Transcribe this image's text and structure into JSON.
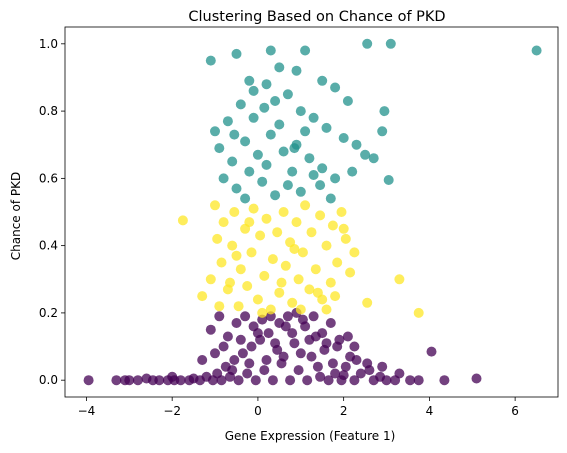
{
  "chart_data": {
    "type": "scatter",
    "title": "Clustering Based on Chance of PKD",
    "xlabel": "Gene Expression (Feature 1)",
    "ylabel": "Chance of PKD",
    "xlim": [
      -4.5,
      7.0
    ],
    "ylim": [
      -0.05,
      1.05
    ],
    "x_ticks": [
      "−4",
      "−2",
      "0",
      "2",
      "4",
      "6"
    ],
    "x_tick_values": [
      -4,
      -2,
      0,
      2,
      4,
      6
    ],
    "y_ticks": [
      "0.0",
      "0.2",
      "0.4",
      "0.6",
      "0.8",
      "1.0"
    ],
    "y_tick_values": [
      0.0,
      0.2,
      0.4,
      0.6,
      0.8,
      1.0
    ],
    "grid": false,
    "legend": "none",
    "series": [
      {
        "color": "#440154",
        "points": [
          [
            -3.95,
            0.0
          ],
          [
            -3.3,
            0.0
          ],
          [
            -3.1,
            0.0
          ],
          [
            -3.0,
            0.0
          ],
          [
            -2.8,
            0.0
          ],
          [
            -2.45,
            0.0
          ],
          [
            -2.3,
            0.0
          ],
          [
            -2.1,
            0.0
          ],
          [
            -1.95,
            0.0
          ],
          [
            -1.8,
            0.0
          ],
          [
            -1.6,
            0.0
          ],
          [
            -1.5,
            0.005
          ],
          [
            -1.35,
            0.0
          ],
          [
            -1.2,
            0.01
          ],
          [
            -1.05,
            0.0
          ],
          [
            -0.95,
            0.02
          ],
          [
            -0.85,
            0.0
          ],
          [
            -0.75,
            0.04
          ],
          [
            -0.65,
            0.01
          ],
          [
            -0.55,
            0.06
          ],
          [
            -0.45,
            0.0
          ],
          [
            -0.35,
            0.08
          ],
          [
            -0.25,
            0.02
          ],
          [
            -0.15,
            0.1
          ],
          [
            -0.05,
            0.0
          ],
          [
            0.05,
            0.12
          ],
          [
            0.15,
            0.03
          ],
          [
            0.25,
            0.14
          ],
          [
            0.35,
            0.0
          ],
          [
            0.45,
            0.09
          ],
          [
            0.55,
            0.05
          ],
          [
            0.65,
            0.16
          ],
          [
            0.75,
            0.0
          ],
          [
            0.85,
            0.11
          ],
          [
            0.95,
            0.03
          ],
          [
            1.05,
            0.18
          ],
          [
            1.15,
            0.0
          ],
          [
            1.25,
            0.07
          ],
          [
            1.35,
            0.13
          ],
          [
            1.45,
            0.01
          ],
          [
            1.55,
            0.09
          ],
          [
            1.65,
            0.0
          ],
          [
            1.75,
            0.05
          ],
          [
            1.85,
            0.1
          ],
          [
            1.95,
            0.0
          ],
          [
            2.05,
            0.04
          ],
          [
            2.15,
            0.07
          ],
          [
            2.25,
            0.0
          ],
          [
            2.4,
            0.02
          ],
          [
            2.55,
            0.05
          ],
          [
            2.7,
            0.0
          ],
          [
            2.85,
            0.01
          ],
          [
            3.0,
            0.0
          ],
          [
            3.2,
            0.0
          ],
          [
            3.3,
            0.02
          ],
          [
            3.55,
            0.0
          ],
          [
            3.75,
            0.0
          ],
          [
            4.05,
            0.085
          ],
          [
            4.35,
            0.0
          ],
          [
            5.1,
            0.005
          ],
          [
            -1.1,
            0.15
          ],
          [
            -0.9,
            0.19
          ],
          [
            -0.7,
            0.13
          ],
          [
            -0.5,
            0.17
          ],
          [
            -0.3,
            0.19
          ],
          [
            -0.1,
            0.16
          ],
          [
            0.1,
            0.18
          ],
          [
            0.3,
            0.19
          ],
          [
            0.5,
            0.17
          ],
          [
            0.7,
            0.19
          ],
          [
            0.9,
            0.2
          ],
          [
            1.1,
            0.16
          ],
          [
            1.3,
            0.19
          ],
          [
            1.5,
            0.14
          ],
          [
            1.7,
            0.17
          ],
          [
            1.9,
            0.12
          ],
          [
            2.1,
            0.13
          ],
          [
            2.25,
            0.1
          ],
          [
            -0.2,
            0.05
          ],
          [
            0.2,
            0.06
          ],
          [
            0.6,
            0.07
          ],
          [
            1.0,
            0.08
          ],
          [
            1.4,
            0.04
          ],
          [
            -0.6,
            0.03
          ],
          [
            -1.3,
            0.06
          ],
          [
            1.8,
            0.02
          ],
          [
            2.0,
            0.015
          ],
          [
            -0.8,
            0.1
          ],
          [
            0.4,
            0.11
          ],
          [
            1.2,
            0.12
          ],
          [
            -0.4,
            0.12
          ],
          [
            0.0,
            0.14
          ],
          [
            0.8,
            0.14
          ],
          [
            1.6,
            0.11
          ],
          [
            2.3,
            0.06
          ],
          [
            -1.0,
            0.08
          ],
          [
            2.6,
            0.03
          ],
          [
            2.9,
            0.04
          ],
          [
            -2.0,
            0.01
          ],
          [
            -2.6,
            0.005
          ]
        ]
      },
      {
        "color": "#fde725",
        "points": [
          [
            -1.75,
            0.475
          ],
          [
            -1.3,
            0.25
          ],
          [
            -1.1,
            0.3
          ],
          [
            -1.0,
            0.52
          ],
          [
            -0.95,
            0.42
          ],
          [
            -0.85,
            0.35
          ],
          [
            -0.8,
            0.47
          ],
          [
            -0.7,
            0.27
          ],
          [
            -0.6,
            0.4
          ],
          [
            -0.55,
            0.5
          ],
          [
            -0.45,
            0.22
          ],
          [
            -0.4,
            0.33
          ],
          [
            -0.3,
            0.45
          ],
          [
            -0.25,
            0.28
          ],
          [
            -0.15,
            0.38
          ],
          [
            -0.1,
            0.51
          ],
          [
            0.0,
            0.24
          ],
          [
            0.05,
            0.43
          ],
          [
            0.15,
            0.31
          ],
          [
            0.2,
            0.48
          ],
          [
            0.3,
            0.21
          ],
          [
            0.35,
            0.36
          ],
          [
            0.45,
            0.44
          ],
          [
            0.5,
            0.26
          ],
          [
            0.6,
            0.5
          ],
          [
            0.65,
            0.34
          ],
          [
            0.75,
            0.41
          ],
          [
            0.8,
            0.23
          ],
          [
            0.9,
            0.47
          ],
          [
            0.95,
            0.3
          ],
          [
            1.05,
            0.38
          ],
          [
            1.1,
            0.52
          ],
          [
            1.2,
            0.27
          ],
          [
            1.25,
            0.44
          ],
          [
            1.35,
            0.33
          ],
          [
            1.45,
            0.49
          ],
          [
            1.5,
            0.24
          ],
          [
            1.6,
            0.4
          ],
          [
            1.7,
            0.29
          ],
          [
            1.75,
            0.46
          ],
          [
            1.85,
            0.35
          ],
          [
            1.95,
            0.5
          ],
          [
            2.05,
            0.42
          ],
          [
            2.15,
            0.32
          ],
          [
            2.25,
            0.38
          ],
          [
            1.6,
            0.21
          ],
          [
            3.3,
            0.3
          ],
          [
            3.75,
            0.2
          ],
          [
            2.55,
            0.23
          ],
          [
            -0.9,
            0.22
          ],
          [
            0.1,
            0.2
          ],
          [
            1.0,
            0.21
          ],
          [
            -0.5,
            0.37
          ],
          [
            0.55,
            0.29
          ],
          [
            1.4,
            0.26
          ],
          [
            -0.2,
            0.47
          ],
          [
            0.85,
            0.39
          ],
          [
            1.8,
            0.25
          ],
          [
            2.0,
            0.45
          ],
          [
            -0.65,
            0.29
          ]
        ]
      },
      {
        "color": "#21918c",
        "points": [
          [
            -1.1,
            0.95
          ],
          [
            -0.5,
            0.97
          ],
          [
            0.3,
            0.98
          ],
          [
            1.1,
            0.98
          ],
          [
            2.55,
            1.0
          ],
          [
            3.1,
            1.0
          ],
          [
            6.5,
            0.98
          ],
          [
            -0.2,
            0.89
          ],
          [
            0.5,
            0.93
          ],
          [
            0.9,
            0.92
          ],
          [
            1.5,
            0.89
          ],
          [
            1.8,
            0.87
          ],
          [
            2.1,
            0.83
          ],
          [
            2.95,
            0.8
          ],
          [
            -1.0,
            0.74
          ],
          [
            -0.7,
            0.77
          ],
          [
            -0.4,
            0.82
          ],
          [
            -0.1,
            0.86
          ],
          [
            0.2,
            0.88
          ],
          [
            0.4,
            0.83
          ],
          [
            0.7,
            0.85
          ],
          [
            1.0,
            0.8
          ],
          [
            1.3,
            0.78
          ],
          [
            1.6,
            0.75
          ],
          [
            2.0,
            0.72
          ],
          [
            2.3,
            0.7
          ],
          [
            2.9,
            0.74
          ],
          [
            2.5,
            0.67
          ],
          [
            2.7,
            0.66
          ],
          [
            -0.9,
            0.69
          ],
          [
            -0.6,
            0.65
          ],
          [
            -0.3,
            0.71
          ],
          [
            0.0,
            0.67
          ],
          [
            0.3,
            0.73
          ],
          [
            0.6,
            0.68
          ],
          [
            0.9,
            0.7
          ],
          [
            1.2,
            0.66
          ],
          [
            1.5,
            0.63
          ],
          [
            1.8,
            0.6
          ],
          [
            2.2,
            0.62
          ],
          [
            3.05,
            0.595
          ],
          [
            -0.8,
            0.6
          ],
          [
            -0.5,
            0.57
          ],
          [
            -0.2,
            0.62
          ],
          [
            0.1,
            0.59
          ],
          [
            0.4,
            0.55
          ],
          [
            0.7,
            0.58
          ],
          [
            1.0,
            0.56
          ],
          [
            1.3,
            0.61
          ],
          [
            1.7,
            0.54
          ],
          [
            -0.3,
            0.54
          ],
          [
            0.2,
            0.64
          ],
          [
            0.8,
            0.62
          ],
          [
            1.1,
            0.74
          ],
          [
            -0.1,
            0.78
          ],
          [
            0.5,
            0.76
          ],
          [
            0.15,
            0.81
          ],
          [
            0.85,
            0.69
          ],
          [
            -0.55,
            0.73
          ],
          [
            1.45,
            0.58
          ]
        ]
      }
    ]
  }
}
